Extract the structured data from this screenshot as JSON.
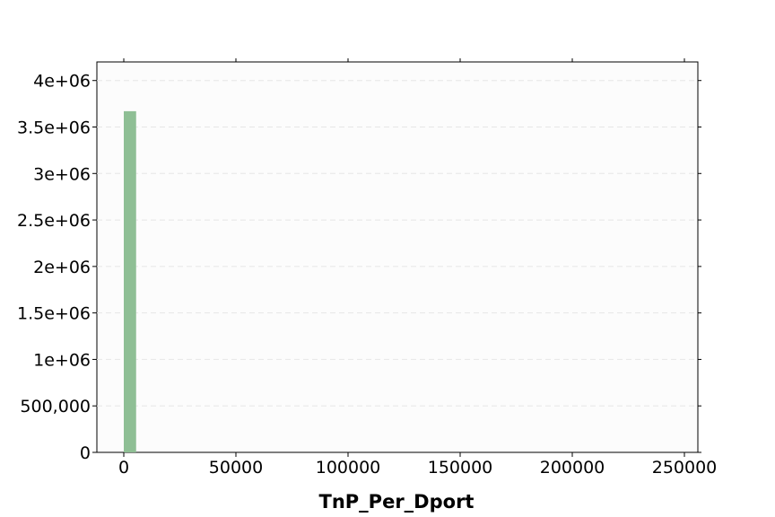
{
  "chart_data": {
    "type": "bar",
    "title": "",
    "xlabel": "TnP_Per_Dport",
    "ylabel": "",
    "xlim": [
      -12000,
      256000
    ],
    "ylim": [
      0,
      4200000
    ],
    "grid": true,
    "bar_color": "#8fbf95",
    "bins": [
      {
        "x_start": 0,
        "x_end": 5500,
        "count": 3670000
      }
    ],
    "x_ticks": [
      {
        "value": 0,
        "label": "0"
      },
      {
        "value": 50000,
        "label": "50000"
      },
      {
        "value": 100000,
        "label": "100000"
      },
      {
        "value": 150000,
        "label": "150000"
      },
      {
        "value": 200000,
        "label": "200000"
      },
      {
        "value": 250000,
        "label": "250000"
      }
    ],
    "y_ticks": [
      {
        "value": 0,
        "label": "0"
      },
      {
        "value": 500000,
        "label": "500,000"
      },
      {
        "value": 1000000,
        "label": "1e+06"
      },
      {
        "value": 1500000,
        "label": "1.5e+06"
      },
      {
        "value": 2000000,
        "label": "2e+06"
      },
      {
        "value": 2500000,
        "label": "2.5e+06"
      },
      {
        "value": 3000000,
        "label": "3e+06"
      },
      {
        "value": 3500000,
        "label": "3.5e+06"
      },
      {
        "value": 4000000,
        "label": "4e+06"
      }
    ]
  }
}
